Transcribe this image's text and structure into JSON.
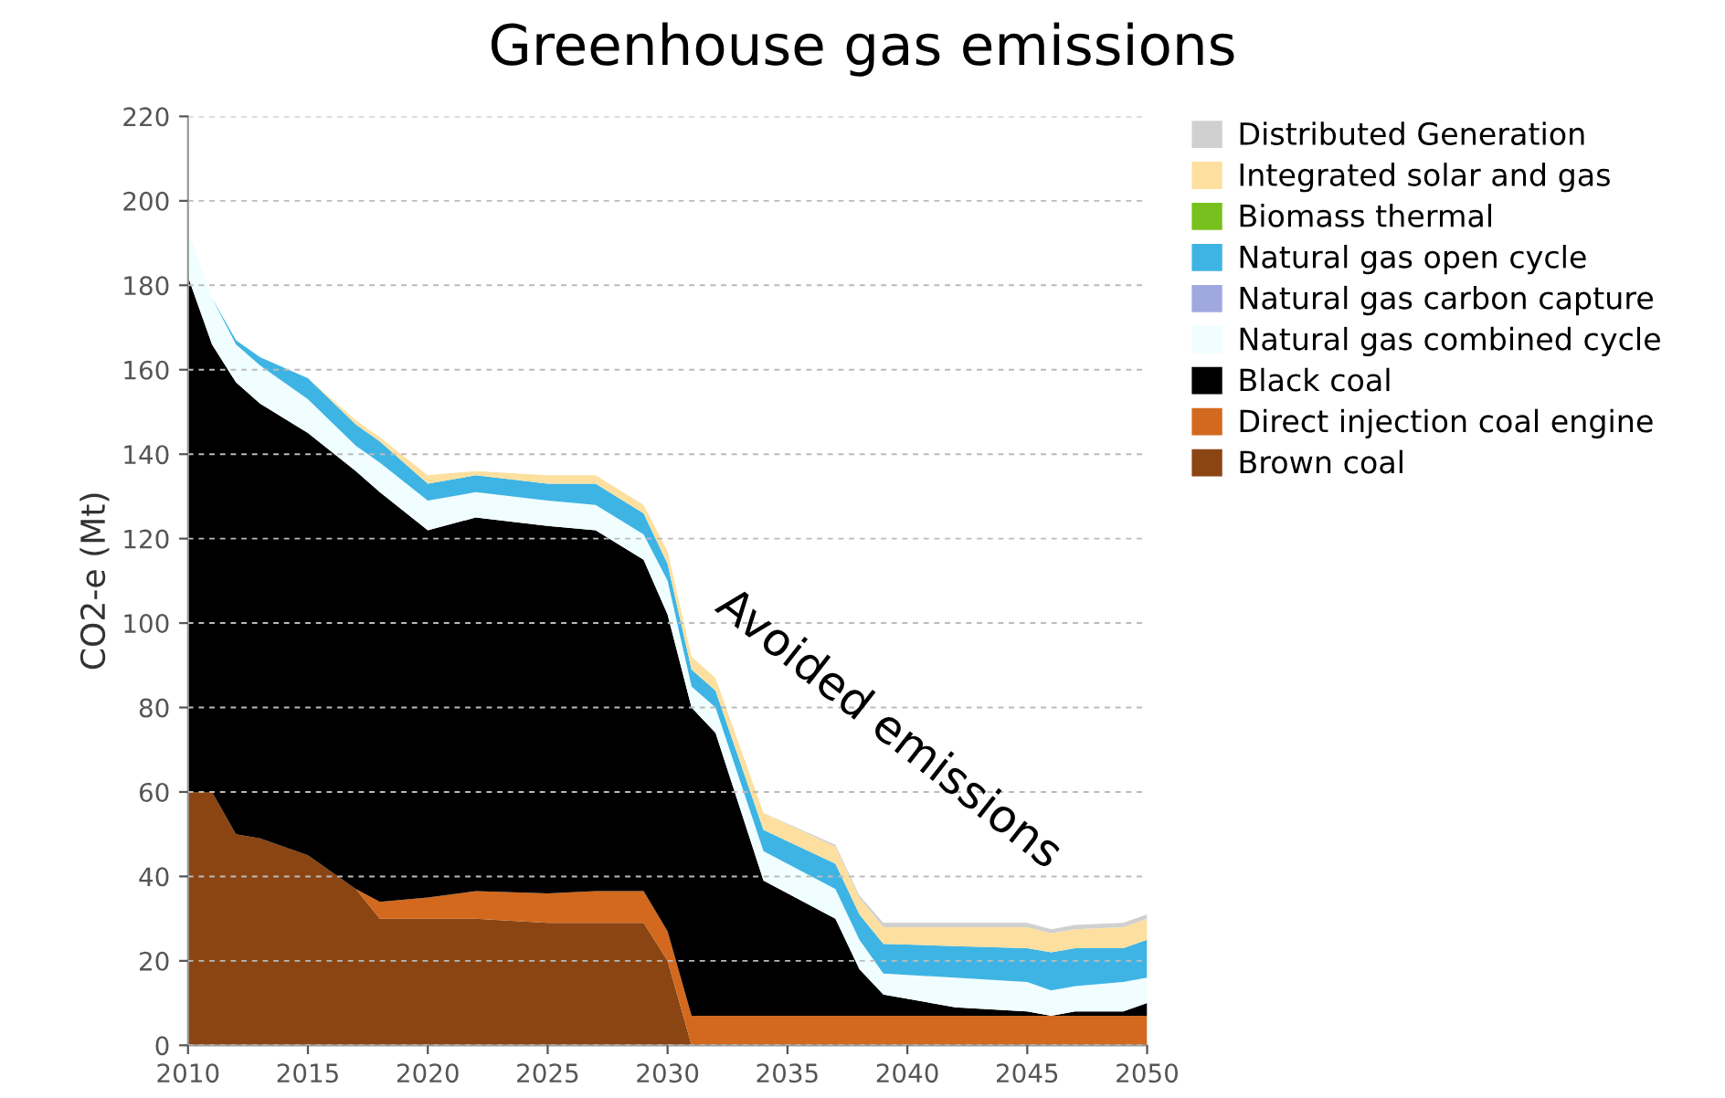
{
  "chart_data": {
    "type": "area",
    "stacked": true,
    "title": "Greenhouse gas emissions",
    "ylabel": "CO2-e (Mt)",
    "x": [
      2010,
      2011,
      2012,
      2013,
      2015,
      2017,
      2018,
      2020,
      2022,
      2025,
      2027,
      2029,
      2030,
      2031,
      2032,
      2034,
      2037,
      2038,
      2039,
      2042,
      2045,
      2046,
      2047,
      2049,
      2050
    ],
    "series": [
      {
        "name": "Brown coal",
        "color": "#8b4513",
        "values": [
          60,
          60,
          50,
          49,
          45,
          37,
          30,
          30,
          30,
          29,
          29,
          29,
          20,
          0,
          0,
          0,
          0,
          0,
          0,
          0,
          0,
          0,
          0,
          0,
          0
        ]
      },
      {
        "name": "Direct injection coal engine",
        "color": "#d2691e",
        "values": [
          null,
          null,
          null,
          null,
          null,
          0,
          4,
          5,
          6.5,
          7,
          7.5,
          7.5,
          7,
          7,
          7,
          7,
          7,
          7,
          7,
          7,
          7,
          7,
          7,
          7,
          7
        ]
      },
      {
        "name": "Black coal",
        "color": "#000000",
        "values": [
          122,
          106,
          107,
          103,
          100,
          99,
          97,
          87,
          88.5,
          87,
          85.5,
          78.5,
          75,
          73,
          67,
          32,
          23,
          11,
          5,
          2,
          1,
          0,
          1,
          1,
          3
        ]
      },
      {
        "name": "Natural gas combined cycle",
        "color": "#f0feff",
        "values": [
          11,
          11,
          9,
          9,
          8,
          6,
          7,
          7,
          6,
          6,
          6,
          6,
          8,
          5,
          6,
          7,
          7,
          7,
          5,
          7,
          7,
          6,
          6,
          7,
          6
        ]
      },
      {
        "name": "Natural gas carbon capture",
        "color": "#a0a8e0",
        "values": [
          null,
          null,
          null,
          null,
          null,
          null,
          null,
          null,
          null,
          null,
          null,
          null,
          null,
          null,
          null,
          null,
          null,
          null,
          null,
          null,
          null,
          null,
          null,
          null,
          null
        ]
      },
      {
        "name": "Natural gas open cycle",
        "color": "#3eb4e4",
        "values": [
          0,
          0,
          1,
          2,
          5,
          5,
          5,
          4,
          4,
          4,
          5,
          5,
          4,
          4,
          4,
          5,
          6,
          6,
          7,
          7.5,
          8,
          9,
          9,
          8,
          9
        ]
      },
      {
        "name": "Biomass thermal",
        "color": "#78c01e",
        "values": [
          null,
          null,
          null,
          null,
          null,
          null,
          null,
          null,
          null,
          null,
          null,
          null,
          null,
          null,
          null,
          null,
          null,
          null,
          null,
          null,
          null,
          null,
          null,
          null,
          null
        ]
      },
      {
        "name": "Integrated solar and gas",
        "color": "#fde0a0",
        "values": [
          0,
          0,
          0,
          0,
          0,
          1,
          1,
          2,
          1,
          2,
          2,
          2,
          3,
          3,
          3,
          4,
          4,
          4,
          4,
          4.5,
          5,
          4.5,
          4.5,
          5,
          5
        ]
      },
      {
        "name": "Distributed Generation",
        "color": "#d0d0d0",
        "values": [
          null,
          null,
          null,
          null,
          null,
          null,
          null,
          null,
          null,
          null,
          null,
          null,
          null,
          null,
          null,
          0,
          0.5,
          0.5,
          1,
          1,
          1,
          1,
          1,
          1,
          1
        ]
      }
    ],
    "xlim": [
      2010,
      2050
    ],
    "xticks": [
      2010,
      2015,
      2020,
      2025,
      2030,
      2035,
      2040,
      2045,
      2050
    ],
    "ylim": [
      0,
      220
    ],
    "yticks": [
      0,
      20,
      40,
      60,
      80,
      100,
      120,
      140,
      160,
      180,
      200,
      220
    ],
    "grid": "y",
    "legend": "top right",
    "annotations": [
      "Avoided emissions"
    ]
  }
}
